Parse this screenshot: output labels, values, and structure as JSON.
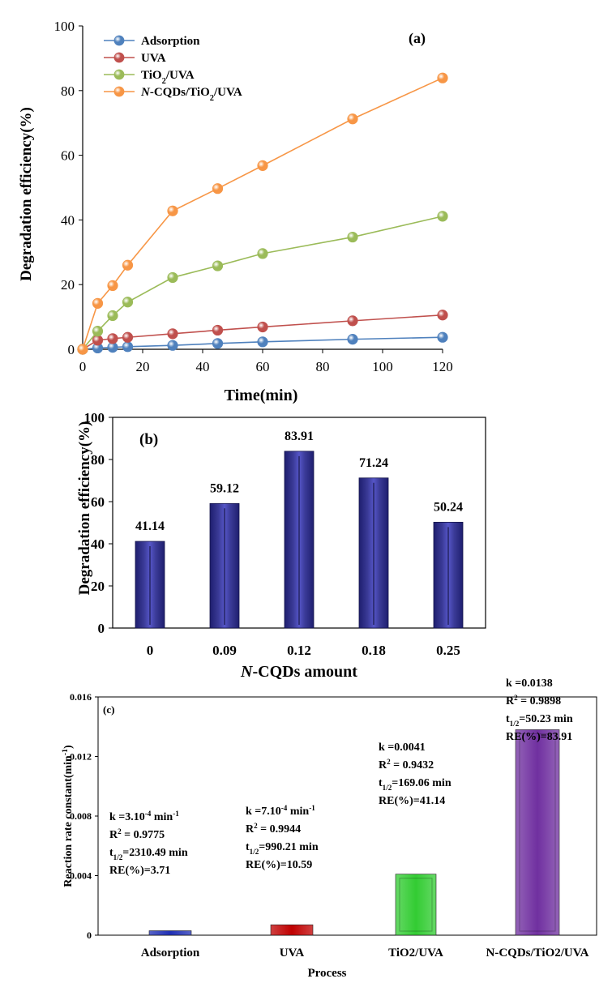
{
  "chart_data": [
    {
      "id": "a",
      "type": "line",
      "panel_label": "(a)",
      "xlabel": "Time(min)",
      "ylabel": "Degradation  efficiency(%)",
      "xlim": [
        0,
        120
      ],
      "ylim": [
        0,
        100
      ],
      "xticks": [
        "0",
        "20",
        "40",
        "60",
        "80",
        "100",
        "120"
      ],
      "yticks": [
        "0",
        "20",
        "40",
        "60",
        "80",
        "100"
      ],
      "x": [
        0,
        5,
        10,
        15,
        30,
        45,
        60,
        90,
        120
      ],
      "legend_position": "top-left",
      "series": [
        {
          "name": "Adsorption",
          "color": "#4f81bd",
          "values": [
            0,
            0.4,
            0.6,
            0.8,
            1.2,
            1.8,
            2.3,
            3.1,
            3.71
          ]
        },
        {
          "name": "UVA",
          "color": "#c0504d",
          "values": [
            0,
            2.8,
            3.3,
            3.7,
            4.8,
            5.9,
            6.9,
            8.8,
            10.59
          ]
        },
        {
          "name": "TiO2/UVA",
          "color": "#9bbb59",
          "values": [
            0,
            5.6,
            10.4,
            14.6,
            22.2,
            25.8,
            29.6,
            34.7,
            41.14
          ]
        },
        {
          "name": "N-CQDs/TiO2/UVA",
          "color": "#f79646",
          "values": [
            0,
            14.2,
            19.7,
            26.0,
            42.8,
            49.7,
            56.8,
            71.24,
            83.91
          ]
        }
      ]
    },
    {
      "id": "b",
      "type": "bar",
      "panel_label": "(b)",
      "xlabel": "N-CQDs amount",
      "ylabel": "Degradation efficiency(%)",
      "ylim": [
        0,
        100
      ],
      "yticks": [
        "0",
        "20",
        "40",
        "60",
        "80",
        "100"
      ],
      "categories": [
        "0",
        "0.09",
        "0.12",
        "0.18",
        "0.25"
      ],
      "values": [
        41.14,
        59.12,
        83.91,
        71.24,
        50.24
      ],
      "data_labels": [
        "41.14",
        "59.12",
        "83.91",
        "71.24",
        "50.24"
      ],
      "bar_color": "#3b3b98"
    },
    {
      "id": "c",
      "type": "bar",
      "panel_label": "(c)",
      "xlabel": "Process",
      "ylabel": "Reaction rate constant(min-1)",
      "ylim": [
        0,
        0.016
      ],
      "yticks": [
        "0",
        "0.004",
        "0.008",
        "0.012",
        "0.016"
      ],
      "categories": [
        "Adsorption",
        "UVA",
        "TiO2/UVA",
        "N-CQDs/TiO2/UVA"
      ],
      "values": [
        0.0003,
        0.0007,
        0.0041,
        0.0138
      ],
      "colors": [
        "#1f2fb5",
        "#c00000",
        "#33cc33",
        "#7030a0"
      ],
      "annotations": [
        {
          "k": "k =3.10",
          "k_exp": "-4",
          "k_unit": " min",
          "k_unit_exp": "-1",
          "r2": "= 0.9775",
          "t_half": "=2310.49 min",
          "re": "RE(%)=3.71"
        },
        {
          "k": "k =7.10",
          "k_exp": "-4",
          "k_unit": " min",
          "k_unit_exp": "-1",
          "r2": "= 0.9944",
          "t_half": "=990.21 min",
          "re": "RE(%)=10.59"
        },
        {
          "k": "k =0.0041",
          "k_exp": "",
          "k_unit": "",
          "k_unit_exp": "",
          "r2": "= 0.9432",
          "t_half": "=169.06 min",
          "re": "RE(%)=41.14"
        },
        {
          "k": "k =0.0138",
          "k_exp": "",
          "k_unit": "",
          "k_unit_exp": "",
          "r2": "= 0.9898",
          "t_half": "=50.23 min",
          "re": "RE(%)=83.91"
        }
      ]
    }
  ]
}
